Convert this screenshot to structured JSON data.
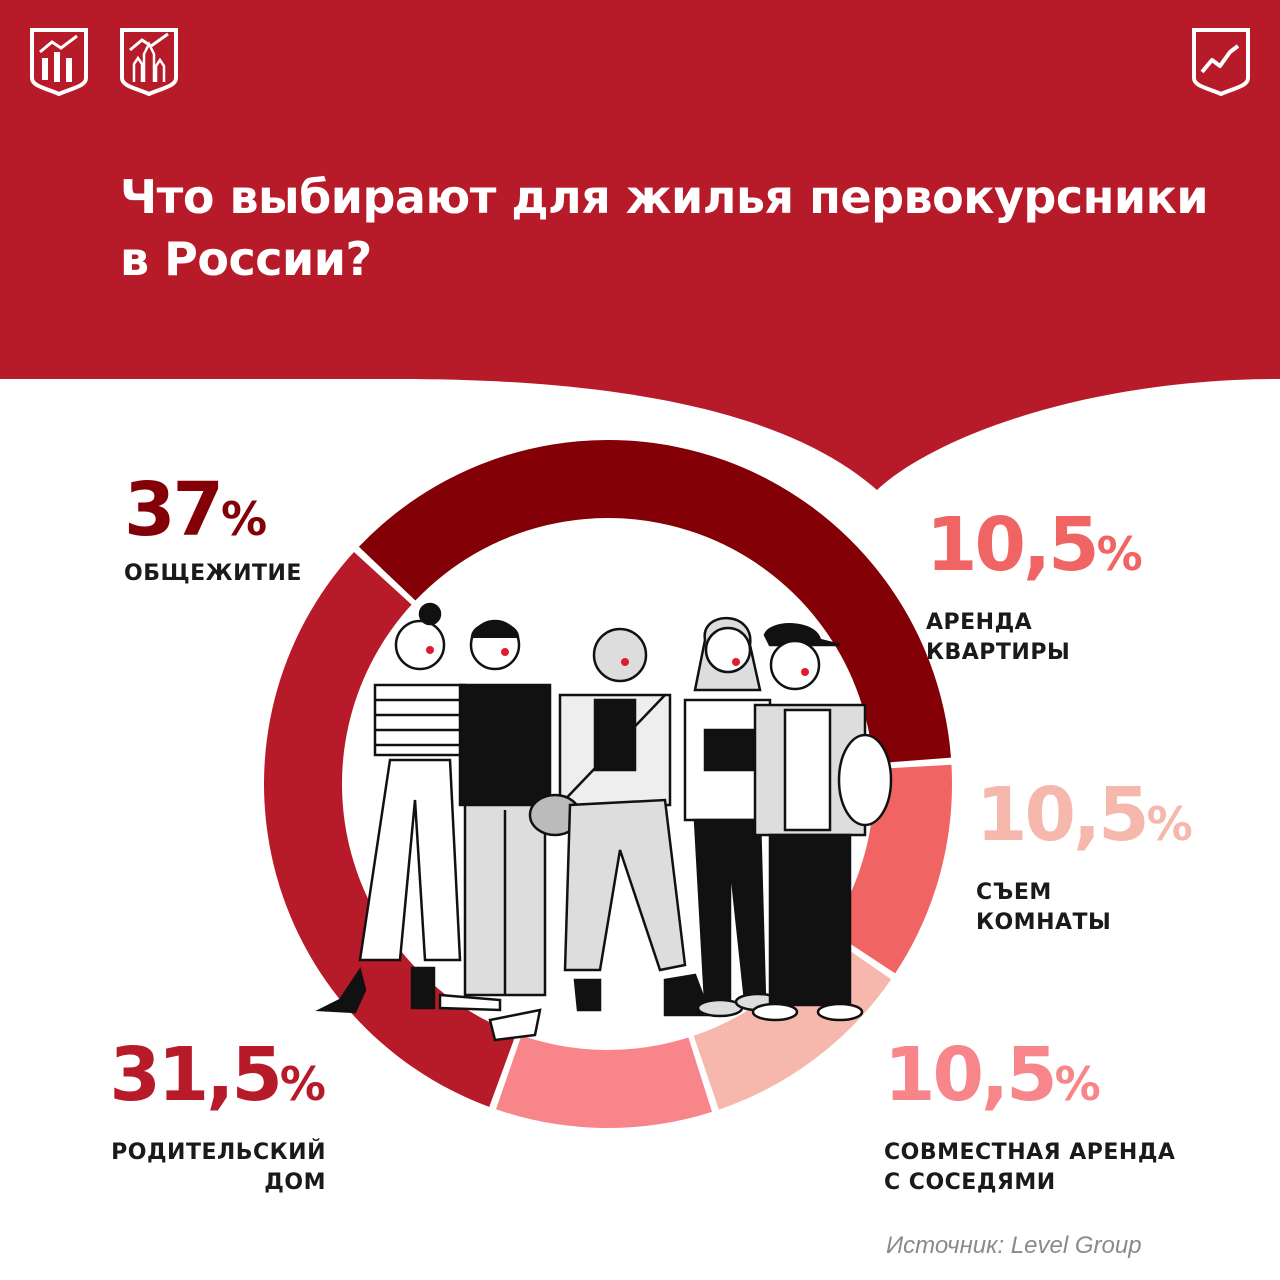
{
  "title": "Что выбирают для жилья первокурсники в России?",
  "logos": [
    "chart-shield-logo",
    "kremlin-shield-logo",
    "growth-shield-logo"
  ],
  "colors": {
    "header": "#b71a28",
    "dorm": "#820006",
    "apartment": "#f06463",
    "room": "#f6b7ad",
    "shared": "#f7858a",
    "parents": "#b71a28"
  },
  "chart_data": {
    "type": "pie",
    "style": "donut",
    "unit": "%",
    "segments": [
      {
        "name": "ОБЩЕЖИТИЕ",
        "value": 37,
        "label": "37",
        "color": "#820006"
      },
      {
        "name": "АРЕНДА КВАРТИРЫ",
        "value": 10.5,
        "label": "10,5",
        "color": "#f06463"
      },
      {
        "name": "СЪЕМ КОМНАТЫ",
        "value": 10.5,
        "label": "10,5",
        "color": "#f6b7ad"
      },
      {
        "name": "СОВМЕСТНАЯ АРЕНДА С СОСЕДЯМИ",
        "value": 10.5,
        "label": "10,5",
        "color": "#f7858a"
      },
      {
        "name": "РОДИТЕЛЬСКИЙ ДОМ",
        "value": 31.5,
        "label": "31,5",
        "color": "#b71a28"
      }
    ]
  },
  "labels": {
    "dorm": {
      "value": "37",
      "pct": "%",
      "line1": "ОБЩЕЖИТИЕ"
    },
    "apartment": {
      "value": "10,5",
      "pct": "%",
      "line1": "АРЕНДА",
      "line2": "КВАРТИРЫ"
    },
    "room": {
      "value": "10,5",
      "pct": "%",
      "line1": "СЪЕМ",
      "line2": "КОМНАТЫ"
    },
    "shared": {
      "value": "10,5",
      "pct": "%",
      "line1": "СОВМЕСТНАЯ АРЕНДА",
      "line2": "С СОСЕДЯМИ"
    },
    "parents": {
      "value": "31,5",
      "pct": "%",
      "line1": "РОДИТЕЛЬСКИЙ",
      "line2": "ДОМ"
    }
  },
  "source": "Источник: Level Group"
}
